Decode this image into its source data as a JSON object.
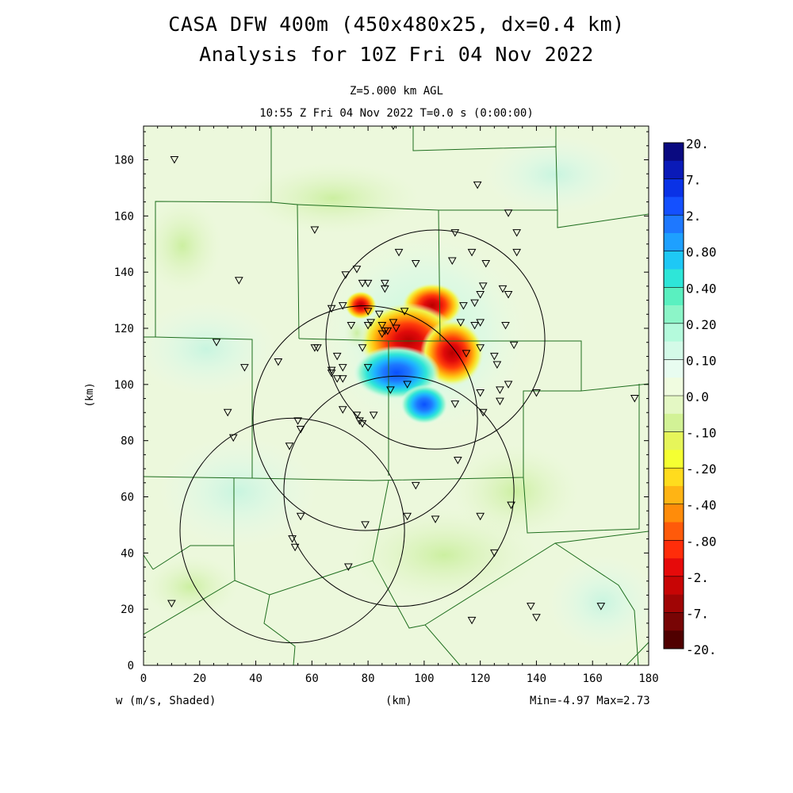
{
  "header": {
    "title_line1": "CASA DFW 400m (450x480x25, dx=0.4 km)",
    "title_line2": "Analysis for 10Z Fri 04 Nov 2022",
    "level": "Z=5.000 km AGL",
    "time": "10:55 Z Fri 04 Nov 2022    T=0.0 s (0:00:00)"
  },
  "footer": {
    "variable": "w (m/s, Shaded)",
    "xunit": "(km)",
    "minmax": "Min=-4.97 Max=2.73"
  },
  "chart_data": {
    "type": "heatmap",
    "title": "CASA DFW 400m (450x480x25, dx=0.4 km)",
    "subtitle": "Analysis for 10Z Fri 04 Nov 2022",
    "variable": "w (m/s, Shaded)",
    "xlabel": "(km)",
    "ylabel": "(km)",
    "xlim": [
      0,
      180
    ],
    "ylim": [
      0,
      192
    ],
    "x_ticks": [
      "0",
      "20",
      "40",
      "60",
      "80",
      "100",
      "120",
      "140",
      "160",
      "180"
    ],
    "y_ticks": [
      "0",
      "20",
      "40",
      "60",
      "80",
      "100",
      "120",
      "140",
      "160",
      "180"
    ],
    "min": -4.97,
    "max": 2.73,
    "colorbar": {
      "labels": [
        "20.",
        "7.",
        "2.",
        "0.80",
        "0.40",
        "0.20",
        "0.10",
        "0.0",
        "-.10",
        "-.20",
        "-.40",
        "-.80",
        "-2.",
        "-7.",
        "-20."
      ],
      "colors": [
        "#0a0a80",
        "#0a1ab8",
        "#0a32e6",
        "#1450ff",
        "#1e78ff",
        "#1ea0ff",
        "#1ec8f5",
        "#2ee6d8",
        "#5af0c0",
        "#8cf5c8",
        "#b4fadc",
        "#d4fae8",
        "#e8fcf0",
        "#f0fce0",
        "#e4f8c4",
        "#d2f296",
        "#e6f55a",
        "#f5ff32",
        "#ffdc1e",
        "#ffb414",
        "#ff8c0a",
        "#ff5a0a",
        "#ff2d0a",
        "#e60a0a",
        "#c80505",
        "#a00505",
        "#780505",
        "#500000"
      ]
    },
    "range_rings_km": [
      {
        "center": [
          104,
          116
        ],
        "radius": 39
      },
      {
        "center": [
          79,
          88
        ],
        "radius": 40
      },
      {
        "center": [
          91,
          62
        ],
        "radius": 41
      },
      {
        "center": [
          53,
          48
        ],
        "radius": 40
      }
    ],
    "features": [
      {
        "name": "updraft",
        "center": [
          100,
          115
        ],
        "peak": 2.73
      },
      {
        "name": "downdraft",
        "center": [
          93,
          101
        ],
        "peak": -4.97
      }
    ],
    "stations_km": [
      [
        11,
        180
      ],
      [
        89,
        192
      ],
      [
        119,
        171
      ],
      [
        130,
        161
      ],
      [
        133,
        154
      ],
      [
        133,
        147
      ],
      [
        111,
        154
      ],
      [
        117,
        147
      ],
      [
        61,
        155
      ],
      [
        34,
        137
      ],
      [
        91,
        147
      ],
      [
        97,
        143
      ],
      [
        110,
        144
      ],
      [
        122,
        143
      ],
      [
        121,
        135
      ],
      [
        120,
        132
      ],
      [
        130,
        132
      ],
      [
        128,
        134
      ],
      [
        118,
        129
      ],
      [
        114,
        128
      ],
      [
        76,
        141
      ],
      [
        72,
        139
      ],
      [
        78,
        136
      ],
      [
        80,
        136
      ],
      [
        86,
        136
      ],
      [
        86,
        134
      ],
      [
        67,
        127
      ],
      [
        71,
        128
      ],
      [
        80,
        126
      ],
      [
        84,
        125
      ],
      [
        93,
        126
      ],
      [
        74,
        121
      ],
      [
        80,
        121
      ],
      [
        81,
        122
      ],
      [
        85,
        121
      ],
      [
        86,
        119
      ],
      [
        87,
        119
      ],
      [
        89,
        122
      ],
      [
        90,
        120
      ],
      [
        85,
        118
      ],
      [
        113,
        122
      ],
      [
        120,
        122
      ],
      [
        118,
        121
      ],
      [
        129,
        121
      ],
      [
        26,
        115
      ],
      [
        36,
        106
      ],
      [
        62,
        113
      ],
      [
        69,
        110
      ],
      [
        78,
        113
      ],
      [
        61,
        113
      ],
      [
        48,
        108
      ],
      [
        67,
        105
      ],
      [
        67,
        104
      ],
      [
        71,
        106
      ],
      [
        69,
        102
      ],
      [
        71,
        102
      ],
      [
        80,
        106
      ],
      [
        115,
        111
      ],
      [
        120,
        113
      ],
      [
        125,
        110
      ],
      [
        126,
        107
      ],
      [
        132,
        114
      ],
      [
        130,
        100
      ],
      [
        127,
        98
      ],
      [
        127,
        94
      ],
      [
        120,
        97
      ],
      [
        140,
        97
      ],
      [
        175,
        95
      ],
      [
        88,
        98
      ],
      [
        94,
        100
      ],
      [
        71,
        91
      ],
      [
        76,
        89
      ],
      [
        78,
        86
      ],
      [
        77,
        87
      ],
      [
        82,
        89
      ],
      [
        111,
        93
      ],
      [
        121,
        90
      ],
      [
        30,
        90
      ],
      [
        32,
        81
      ],
      [
        55,
        87
      ],
      [
        56,
        84
      ],
      [
        52,
        78
      ],
      [
        112,
        73
      ],
      [
        97,
        64
      ],
      [
        131,
        57
      ],
      [
        56,
        53
      ],
      [
        79,
        50
      ],
      [
        94,
        53
      ],
      [
        104,
        52
      ],
      [
        120,
        53
      ],
      [
        125,
        40
      ],
      [
        53,
        45
      ],
      [
        54,
        42
      ],
      [
        73,
        35
      ],
      [
        10,
        22
      ],
      [
        138,
        21
      ],
      [
        140,
        17
      ],
      [
        163,
        21
      ],
      [
        117,
        16
      ]
    ]
  }
}
